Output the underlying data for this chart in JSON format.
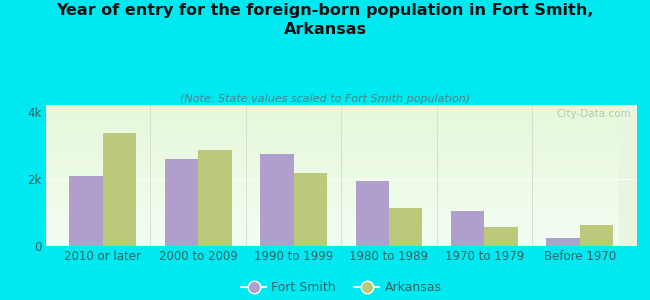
{
  "title": "Year of entry for the foreign-born population in Fort Smith,\nArkansas",
  "subtitle": "(Note: State values scaled to Fort Smith population)",
  "categories": [
    "2010 or later",
    "2000 to 2009",
    "1990 to 1999",
    "1980 to 1989",
    "1970 to 1979",
    "Before 1970"
  ],
  "fort_smith": [
    2100,
    2600,
    2750,
    1950,
    1050,
    250
  ],
  "arkansas": [
    3380,
    2870,
    2180,
    1120,
    580,
    640
  ],
  "fort_smith_color": "#b09fcc",
  "arkansas_color": "#bcc97a",
  "background_color": "#00e8f0",
  "plot_bg_top": "#f5fff5",
  "plot_bg_bottom": "#d8efd8",
  "ylim": [
    0,
    4200
  ],
  "ytick_vals": [
    0,
    2000,
    4000
  ],
  "ytick_labels": [
    "0",
    "2k",
    "4k"
  ],
  "bar_width": 0.35,
  "legend_labels": [
    "Fort Smith",
    "Arkansas"
  ],
  "title_fontsize": 11.5,
  "subtitle_fontsize": 8,
  "tick_fontsize": 8.5,
  "legend_fontsize": 9,
  "watermark": "City-Data.com"
}
